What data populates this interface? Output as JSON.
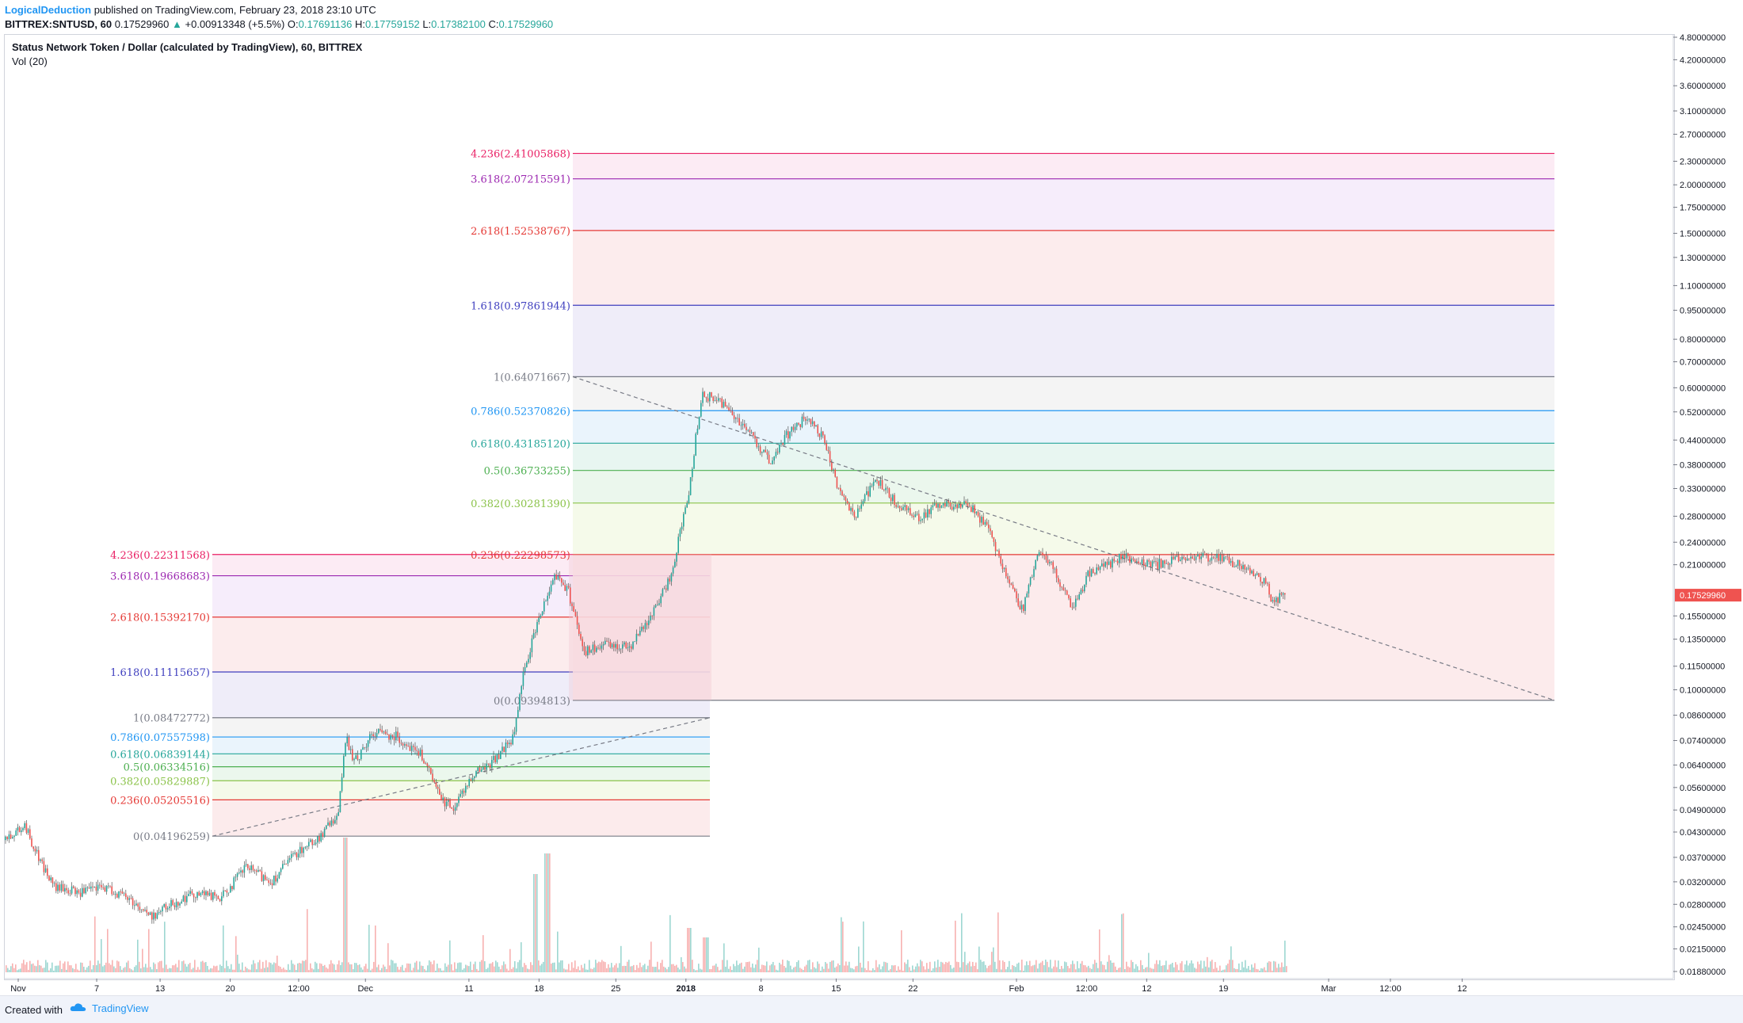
{
  "header": {
    "publisher": "LogicalDeduction",
    "published_text": "published on TradingView.com, February 23, 2018 23:10 UTC",
    "symbol": "BITTREX:SNTUSD, 60",
    "last": "0.17529960",
    "change": "+0.00913348 (+5.5%)",
    "o_label": "O:",
    "o_value": "0.17691136",
    "h_label": "H:",
    "h_value": "0.17759152",
    "l_label": "L:",
    "l_value": "0.17382100",
    "c_label": "C:",
    "c_value": "0.17529960"
  },
  "chart_title": "Status Network Token / Dollar (calculated by TradingView), 60, BITTREX",
  "vol_title": "Vol (20)",
  "footer": {
    "created": "Created with",
    "brand": "TradingView"
  },
  "colors": {
    "up": "#26a69a",
    "down": "#ef5350",
    "last_price": "#ef5350",
    "fib_line": "#ef5350"
  },
  "chart_data": {
    "type": "candlestick",
    "y_scale": "log",
    "ylim": [
      0.0188,
      4.8
    ],
    "price_ticks": [
      4.8,
      4.2,
      3.6,
      3.1,
      2.7,
      2.3,
      2.0,
      1.75,
      1.5,
      1.3,
      1.1,
      0.95,
      0.8,
      0.7,
      0.6,
      0.52,
      0.44,
      0.38,
      0.33,
      0.28,
      0.24,
      0.21,
      0.155,
      0.135,
      0.115,
      0.1,
      0.086,
      0.074,
      0.064,
      0.056,
      0.049,
      0.043,
      0.037,
      0.032,
      0.028,
      0.0245,
      0.0215,
      0.0188
    ],
    "price_tick_labels": [
      "4.80000000",
      "4.20000000",
      "3.60000000",
      "3.10000000",
      "2.70000000",
      "2.30000000",
      "2.00000000",
      "1.75000000",
      "1.50000000",
      "1.30000000",
      "1.10000000",
      "0.95000000",
      "0.80000000",
      "0.70000000",
      "0.60000000",
      "0.52000000",
      "0.44000000",
      "0.38000000",
      "0.33000000",
      "0.28000000",
      "0.24000000",
      "0.21000000",
      "0.15500000",
      "0.13500000",
      "0.11500000",
      "0.10000000",
      "0.08600000",
      "0.07400000",
      "0.06400000",
      "0.05600000",
      "0.04900000",
      "0.04300000",
      "0.03700000",
      "0.03200000",
      "0.02800000",
      "0.02450000",
      "0.02150000",
      "0.01880000"
    ],
    "last_price_label": "0.17529960",
    "time_ticks": [
      "Nov",
      "7",
      "13",
      "20",
      "12:00",
      "Dec",
      "11",
      "18",
      "25",
      "2018",
      "8",
      "15",
      "22",
      "Feb",
      "12:00",
      "12",
      "19",
      "Mar",
      "12:00",
      "12"
    ],
    "time_tick_pos": [
      0.0,
      0.047,
      0.085,
      0.127,
      0.168,
      0.208,
      0.27,
      0.312,
      0.358,
      0.4,
      0.445,
      0.49,
      0.536,
      0.598,
      0.64,
      0.676,
      0.722,
      0.785,
      0.822,
      0.865
    ],
    "price_path": [
      [
        0.0,
        0.041
      ],
      [
        0.012,
        0.045
      ],
      [
        0.022,
        0.036
      ],
      [
        0.03,
        0.031
      ],
      [
        0.045,
        0.03
      ],
      [
        0.06,
        0.031
      ],
      [
        0.075,
        0.029
      ],
      [
        0.088,
        0.026
      ],
      [
        0.1,
        0.028
      ],
      [
        0.115,
        0.03
      ],
      [
        0.13,
        0.029
      ],
      [
        0.145,
        0.035
      ],
      [
        0.16,
        0.032
      ],
      [
        0.175,
        0.038
      ],
      [
        0.19,
        0.042
      ],
      [
        0.2,
        0.048
      ],
      [
        0.205,
        0.075
      ],
      [
        0.21,
        0.065
      ],
      [
        0.222,
        0.078
      ],
      [
        0.235,
        0.076
      ],
      [
        0.25,
        0.068
      ],
      [
        0.262,
        0.052
      ],
      [
        0.27,
        0.05
      ],
      [
        0.28,
        0.06
      ],
      [
        0.292,
        0.065
      ],
      [
        0.305,
        0.075
      ],
      [
        0.312,
        0.115
      ],
      [
        0.322,
        0.16
      ],
      [
        0.33,
        0.2
      ],
      [
        0.338,
        0.18
      ],
      [
        0.348,
        0.125
      ],
      [
        0.36,
        0.13
      ],
      [
        0.375,
        0.13
      ],
      [
        0.39,
        0.16
      ],
      [
        0.4,
        0.2
      ],
      [
        0.41,
        0.32
      ],
      [
        0.418,
        0.58
      ],
      [
        0.43,
        0.55
      ],
      [
        0.445,
        0.47
      ],
      [
        0.46,
        0.38
      ],
      [
        0.468,
        0.45
      ],
      [
        0.48,
        0.5
      ],
      [
        0.49,
        0.45
      ],
      [
        0.5,
        0.33
      ],
      [
        0.51,
        0.28
      ],
      [
        0.522,
        0.35
      ],
      [
        0.535,
        0.3
      ],
      [
        0.548,
        0.28
      ],
      [
        0.562,
        0.3
      ],
      [
        0.578,
        0.3
      ],
      [
        0.59,
        0.26
      ],
      [
        0.6,
        0.2
      ],
      [
        0.61,
        0.16
      ],
      [
        0.62,
        0.23
      ],
      [
        0.63,
        0.2
      ],
      [
        0.64,
        0.16
      ],
      [
        0.65,
        0.2
      ],
      [
        0.67,
        0.22
      ],
      [
        0.69,
        0.21
      ],
      [
        0.71,
        0.22
      ],
      [
        0.725,
        0.22
      ],
      [
        0.74,
        0.21
      ],
      [
        0.755,
        0.19
      ],
      [
        0.76,
        0.17
      ],
      [
        0.768,
        0.1753
      ]
    ],
    "volume_spikes": [
      [
        0.204,
        0.85
      ],
      [
        0.318,
        0.62
      ],
      [
        0.325,
        0.75
      ],
      [
        0.41,
        0.28
      ],
      [
        0.42,
        0.22
      ]
    ],
    "fib_sets": [
      {
        "levels": [
          {
            "label": "0(0.04196259)",
            "ratio": "0",
            "value": 0.04196259,
            "color": "#787b86"
          },
          {
            "label": "0.236(0.05205516)",
            "ratio": "0.236",
            "value": 0.05205516,
            "color": "#e53935"
          },
          {
            "label": "0.382(0.05829887)",
            "ratio": "0.382",
            "value": 0.05829887,
            "color": "#8bc34a"
          },
          {
            "label": "0.5(0.06334516)",
            "ratio": "0.5",
            "value": 0.06334516,
            "color": "#4caf50"
          },
          {
            "label": "0.618(0.06839144)",
            "ratio": "0.618",
            "value": 0.06839144,
            "color": "#26a69a"
          },
          {
            "label": "0.786(0.07557598)",
            "ratio": "0.786",
            "value": 0.07557598,
            "color": "#2196f3"
          },
          {
            "label": "1(0.08472772)",
            "ratio": "1",
            "value": 0.08472772,
            "color": "#787b86"
          },
          {
            "label": "1.618(0.11115657)",
            "ratio": "1.618",
            "value": 0.11115657,
            "color": "#3f3fbf"
          },
          {
            "label": "2.618(0.15392170)",
            "ratio": "2.618",
            "value": 0.1539217,
            "color": "#e53935"
          },
          {
            "label": "3.618(0.19668683)",
            "ratio": "3.618",
            "value": 0.19668683,
            "color": "#9c27b0"
          },
          {
            "label": "4.236(0.22311568)",
            "ratio": "4.236",
            "value": 0.22311568,
            "color": "#e91e63"
          }
        ]
      },
      {
        "levels": [
          {
            "label": "0(0.09394813)",
            "ratio": "0",
            "value": 0.09394813,
            "color": "#787b86"
          },
          {
            "label": "0.236(0.22298573)",
            "ratio": "0.236",
            "value": 0.22298573,
            "color": "#e53935"
          },
          {
            "label": "0.382(0.30281390)",
            "ratio": "0.382",
            "value": 0.3028139,
            "color": "#8bc34a"
          },
          {
            "label": "0.5(0.36733255)",
            "ratio": "0.5",
            "value": 0.36733255,
            "color": "#4caf50"
          },
          {
            "label": "0.618(0.43185120)",
            "ratio": "0.618",
            "value": 0.4318512,
            "color": "#26a69a"
          },
          {
            "label": "0.786(0.52370826)",
            "ratio": "0.786",
            "value": 0.52370826,
            "color": "#2196f3"
          },
          {
            "label": "1(0.64071667)",
            "ratio": "1",
            "value": 0.64071667,
            "color": "#787b86"
          },
          {
            "label": "1.618(0.97861944)",
            "ratio": "1.618",
            "value": 0.97861944,
            "color": "#3f3fbf"
          },
          {
            "label": "2.618(1.52538767)",
            "ratio": "2.618",
            "value": 1.52538767,
            "color": "#e53935"
          },
          {
            "label": "3.618(2.07215591)",
            "ratio": "3.618",
            "value": 2.07215591,
            "color": "#9c27b0"
          },
          {
            "label": "4.236(2.41005868)",
            "ratio": "4.236",
            "value": 2.41005868,
            "color": "#e91e63"
          }
        ]
      }
    ]
  }
}
